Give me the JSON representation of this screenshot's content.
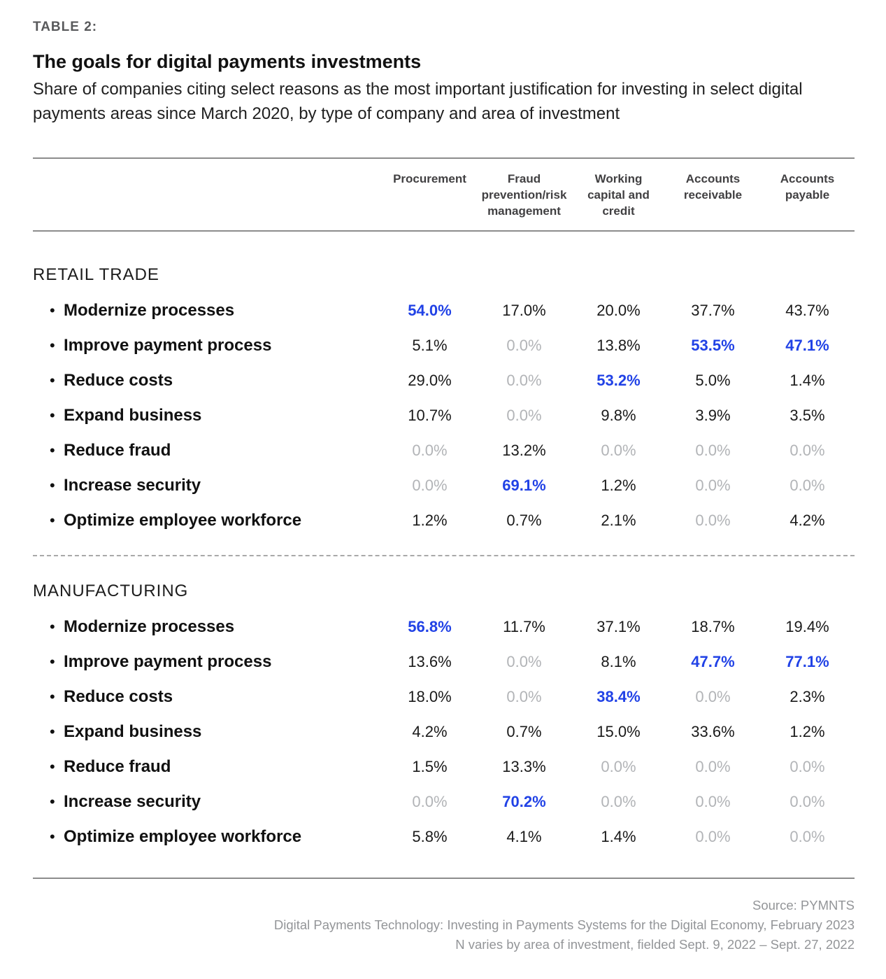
{
  "page": {
    "kicker": "TABLE 2:",
    "title": "The goals for digital payments investments",
    "subtitle": "Share of companies citing select reasons as the most important justification for investing in select digital payments areas since March 2020, by type of company and area of investment"
  },
  "columns": [
    "Procurement",
    "Fraud prevention/risk management",
    "Working capital and credit",
    "Accounts receivable",
    "Accounts payable"
  ],
  "sections": [
    {
      "name": "RETAIL TRADE",
      "rows": [
        {
          "label": "Modernize processes",
          "cells": [
            {
              "text": "54.0%",
              "tone": "blue"
            },
            {
              "text": "17.0%",
              "tone": "black"
            },
            {
              "text": "20.0%",
              "tone": "black"
            },
            {
              "text": "37.7%",
              "tone": "black"
            },
            {
              "text": "43.7%",
              "tone": "black"
            }
          ]
        },
        {
          "label": "Improve payment process",
          "cells": [
            {
              "text": "5.1%",
              "tone": "black"
            },
            {
              "text": "0.0%",
              "tone": "gray"
            },
            {
              "text": "13.8%",
              "tone": "black"
            },
            {
              "text": "53.5%",
              "tone": "blue"
            },
            {
              "text": "47.1%",
              "tone": "blue"
            }
          ]
        },
        {
          "label": "Reduce costs",
          "cells": [
            {
              "text": "29.0%",
              "tone": "black"
            },
            {
              "text": "0.0%",
              "tone": "gray"
            },
            {
              "text": "53.2%",
              "tone": "blue"
            },
            {
              "text": "5.0%",
              "tone": "black"
            },
            {
              "text": "1.4%",
              "tone": "black"
            }
          ]
        },
        {
          "label": "Expand business",
          "cells": [
            {
              "text": "10.7%",
              "tone": "black"
            },
            {
              "text": "0.0%",
              "tone": "gray"
            },
            {
              "text": "9.8%",
              "tone": "black"
            },
            {
              "text": "3.9%",
              "tone": "black"
            },
            {
              "text": "3.5%",
              "tone": "black"
            }
          ]
        },
        {
          "label": "Reduce fraud",
          "cells": [
            {
              "text": "0.0%",
              "tone": "gray"
            },
            {
              "text": "13.2%",
              "tone": "black"
            },
            {
              "text": "0.0%",
              "tone": "gray"
            },
            {
              "text": "0.0%",
              "tone": "gray"
            },
            {
              "text": "0.0%",
              "tone": "gray"
            }
          ]
        },
        {
          "label": "Increase security",
          "cells": [
            {
              "text": "0.0%",
              "tone": "gray"
            },
            {
              "text": "69.1%",
              "tone": "blue"
            },
            {
              "text": "1.2%",
              "tone": "black"
            },
            {
              "text": "0.0%",
              "tone": "gray"
            },
            {
              "text": "0.0%",
              "tone": "gray"
            }
          ]
        },
        {
          "label": "Optimize employee workforce",
          "cells": [
            {
              "text": "1.2%",
              "tone": "black"
            },
            {
              "text": "0.7%",
              "tone": "black"
            },
            {
              "text": "2.1%",
              "tone": "black"
            },
            {
              "text": "0.0%",
              "tone": "gray"
            },
            {
              "text": "4.2%",
              "tone": "black"
            }
          ]
        }
      ]
    },
    {
      "name": "MANUFACTURING",
      "rows": [
        {
          "label": "Modernize processes",
          "cells": [
            {
              "text": "56.8%",
              "tone": "blue"
            },
            {
              "text": "11.7%",
              "tone": "black"
            },
            {
              "text": "37.1%",
              "tone": "black"
            },
            {
              "text": "18.7%",
              "tone": "black"
            },
            {
              "text": "19.4%",
              "tone": "black"
            }
          ]
        },
        {
          "label": "Improve payment process",
          "cells": [
            {
              "text": "13.6%",
              "tone": "black"
            },
            {
              "text": "0.0%",
              "tone": "gray"
            },
            {
              "text": "8.1%",
              "tone": "black"
            },
            {
              "text": "47.7%",
              "tone": "blue"
            },
            {
              "text": "77.1%",
              "tone": "blue"
            }
          ]
        },
        {
          "label": "Reduce costs",
          "cells": [
            {
              "text": "18.0%",
              "tone": "black"
            },
            {
              "text": "0.0%",
              "tone": "gray"
            },
            {
              "text": "38.4%",
              "tone": "blue"
            },
            {
              "text": "0.0%",
              "tone": "gray"
            },
            {
              "text": "2.3%",
              "tone": "black"
            }
          ]
        },
        {
          "label": "Expand business",
          "cells": [
            {
              "text": "4.2%",
              "tone": "black"
            },
            {
              "text": "0.7%",
              "tone": "black"
            },
            {
              "text": "15.0%",
              "tone": "black"
            },
            {
              "text": "33.6%",
              "tone": "black"
            },
            {
              "text": "1.2%",
              "tone": "black"
            }
          ]
        },
        {
          "label": "Reduce fraud",
          "cells": [
            {
              "text": "1.5%",
              "tone": "black"
            },
            {
              "text": "13.3%",
              "tone": "black"
            },
            {
              "text": "0.0%",
              "tone": "gray"
            },
            {
              "text": "0.0%",
              "tone": "gray"
            },
            {
              "text": "0.0%",
              "tone": "gray"
            }
          ]
        },
        {
          "label": "Increase security",
          "cells": [
            {
              "text": "0.0%",
              "tone": "gray"
            },
            {
              "text": "70.2%",
              "tone": "blue"
            },
            {
              "text": "0.0%",
              "tone": "gray"
            },
            {
              "text": "0.0%",
              "tone": "gray"
            },
            {
              "text": "0.0%",
              "tone": "gray"
            }
          ]
        },
        {
          "label": "Optimize employee workforce",
          "cells": [
            {
              "text": "5.8%",
              "tone": "black"
            },
            {
              "text": "4.1%",
              "tone": "black"
            },
            {
              "text": "1.4%",
              "tone": "black"
            },
            {
              "text": "0.0%",
              "tone": "gray"
            },
            {
              "text": "0.0%",
              "tone": "gray"
            }
          ]
        }
      ]
    }
  ],
  "footer": {
    "source_line": "Source: PYMNTS",
    "report_line": "Digital Payments Technology: Investing in Payments Systems for the Digital Economy, February 2023",
    "methodology_line": "N varies by area of investment, fielded Sept. 9, 2022 – Sept. 27, 2022"
  },
  "colors": {
    "accent": "#2142e6",
    "muted": "#b2b4b7",
    "ink": "#1a1a1a",
    "rule": "#8c8c8c",
    "kicker": "#58595b",
    "footer": "#939598"
  },
  "chart_data": {
    "type": "table",
    "title": "The goals for digital payments investments",
    "subtitle": "Share of companies citing select reasons as the most important justification for investing in select digital payments areas since March 2020, by type of company and area of investment",
    "unit": "%",
    "columns": [
      "Procurement",
      "Fraud prevention/risk management",
      "Working capital and credit",
      "Accounts receivable",
      "Accounts payable"
    ],
    "groups": [
      {
        "name": "Retail trade",
        "rows": [
          {
            "label": "Modernize processes",
            "values": [
              54.0,
              17.0,
              20.0,
              37.7,
              43.7
            ]
          },
          {
            "label": "Improve payment process",
            "values": [
              5.1,
              0.0,
              13.8,
              53.5,
              47.1
            ]
          },
          {
            "label": "Reduce costs",
            "values": [
              29.0,
              0.0,
              53.2,
              5.0,
              1.4
            ]
          },
          {
            "label": "Expand business",
            "values": [
              10.7,
              0.0,
              9.8,
              3.9,
              3.5
            ]
          },
          {
            "label": "Reduce fraud",
            "values": [
              0.0,
              13.2,
              0.0,
              0.0,
              0.0
            ]
          },
          {
            "label": "Increase security",
            "values": [
              0.0,
              69.1,
              1.2,
              0.0,
              0.0
            ]
          },
          {
            "label": "Optimize employee workforce",
            "values": [
              1.2,
              0.7,
              2.1,
              0.0,
              4.2
            ]
          }
        ]
      },
      {
        "name": "Manufacturing",
        "rows": [
          {
            "label": "Modernize processes",
            "values": [
              56.8,
              11.7,
              37.1,
              18.7,
              19.4
            ]
          },
          {
            "label": "Improve payment process",
            "values": [
              13.6,
              0.0,
              8.1,
              47.7,
              77.1
            ]
          },
          {
            "label": "Reduce costs",
            "values": [
              18.0,
              0.0,
              38.4,
              0.0,
              2.3
            ]
          },
          {
            "label": "Expand business",
            "values": [
              4.2,
              0.7,
              15.0,
              33.6,
              1.2
            ]
          },
          {
            "label": "Reduce fraud",
            "values": [
              1.5,
              13.3,
              0.0,
              0.0,
              0.0
            ]
          },
          {
            "label": "Increase security",
            "values": [
              0.0,
              70.2,
              0.0,
              0.0,
              0.0
            ]
          },
          {
            "label": "Optimize employee workforce",
            "values": [
              5.8,
              4.1,
              1.4,
              0.0,
              0.0
            ]
          }
        ]
      }
    ],
    "highlight_rule": "highest value per column within each group rendered blue bold; 0.0% rendered gray"
  }
}
